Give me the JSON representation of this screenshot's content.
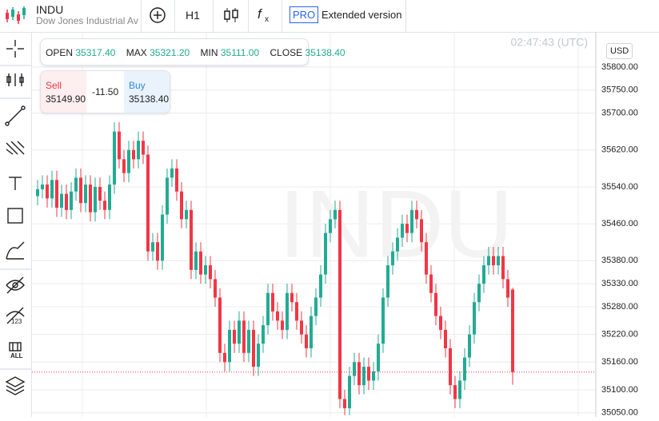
{
  "header": {
    "symbol": "INDU",
    "name": "Dow Jones Industrial Ave",
    "timeframe": "H1",
    "pro": "PRO",
    "extended": "Extended version"
  },
  "ohlc_panel": {
    "open_label": "OPEN",
    "open": "35317.40",
    "max_label": "MAX",
    "max": "35321.20",
    "min_label": "MIN",
    "min": "35111.00",
    "close_label": "CLOSE",
    "close": "35138.40"
  },
  "trade_panel": {
    "sell_label": "Sell",
    "sell": "35149.90",
    "spread": "-11.50",
    "buy_label": "Buy",
    "buy": "35138.40"
  },
  "time": "02:47:43 (UTC)",
  "currency": "USD",
  "toolbar_labels": [
    "123",
    "ALL"
  ],
  "chart_data": {
    "type": "candlestick",
    "watermark": "INDU",
    "up_color": "#22ab94",
    "down_color": "#f23645",
    "grid": true,
    "ylim": [
      35041,
      35876
    ],
    "yticks": [
      {
        "value": 35800,
        "label": "35800.00"
      },
      {
        "value": 35750,
        "label": "35750.00"
      },
      {
        "value": 35700,
        "label": "35700.00"
      },
      {
        "value": 35620,
        "label": "35620.00"
      },
      {
        "value": 35540,
        "label": "35540.00"
      },
      {
        "value": 35460,
        "label": "35460.00"
      },
      {
        "value": 35380,
        "label": "35380.00"
      },
      {
        "value": 35330,
        "label": "35330.00"
      },
      {
        "value": 35280,
        "label": "35280.00"
      },
      {
        "value": 35220,
        "label": "35220.00"
      },
      {
        "value": 35160,
        "label": "35160.00"
      },
      {
        "value": 35100,
        "label": "35100.00"
      },
      {
        "value": 35050,
        "label": "35050.00"
      }
    ],
    "open": [
      35520,
      35535,
      35545,
      35515,
      35555,
      35495,
      35525,
      35490,
      35530,
      35560,
      35505,
      35545,
      35485,
      35540,
      35510,
      35490,
      35545,
      35660,
      35600,
      35570,
      35620,
      35600,
      35640,
      35610,
      35400,
      35420,
      35380,
      35480,
      35560,
      35580,
      35530,
      35470,
      35490,
      35360,
      35400,
      35350,
      35370,
      35340,
      35300,
      35180,
      35160,
      35230,
      35200,
      35250,
      35180,
      35230,
      35150,
      35200,
      35240,
      35310,
      35270,
      35250,
      35230,
      35310,
      35290,
      35250,
      35220,
      35190,
      35260,
      35300,
      35350,
      35440,
      35470,
      35490,
      35080,
      35060,
      35130,
      35160,
      35110,
      35150,
      35120,
      35140,
      35200,
      35300,
      35370,
      35400,
      35430,
      35460,
      35440,
      35490,
      35470,
      35420,
      35350,
      35310,
      35260,
      35230,
      35190,
      35110,
      35080,
      35120,
      35170,
      35220,
      35290,
      35330,
      35370,
      35390,
      35370,
      35390,
      35340,
      35317.4
    ],
    "high": [
      35555,
      35565,
      35565,
      35575,
      35575,
      35545,
      35545,
      35550,
      35580,
      35580,
      35565,
      35565,
      35560,
      35560,
      35530,
      35565,
      35680,
      35680,
      35620,
      35640,
      35640,
      35660,
      35660,
      35630,
      35440,
      35440,
      35500,
      35580,
      35600,
      35600,
      35550,
      35510,
      35510,
      35420,
      35420,
      35390,
      35390,
      35360,
      35320,
      35200,
      35250,
      35250,
      35270,
      35270,
      35250,
      35250,
      35220,
      35260,
      35330,
      35330,
      35290,
      35270,
      35330,
      35330,
      35310,
      35270,
      35240,
      35280,
      35320,
      35370,
      35460,
      35490,
      35510,
      35510,
      35100,
      35150,
      35180,
      35180,
      35170,
      35170,
      35160,
      35220,
      35320,
      35390,
      35420,
      35450,
      35480,
      35480,
      35510,
      35510,
      35490,
      35440,
      35370,
      35330,
      35280,
      35250,
      35210,
      35130,
      35140,
      35190,
      35240,
      35310,
      35350,
      35390,
      35410,
      35410,
      35410,
      35410,
      35360,
      35321.2
    ],
    "low": [
      35500,
      35515,
      35495,
      35495,
      35475,
      35475,
      35470,
      35470,
      35510,
      35485,
      35485,
      35465,
      35465,
      35490,
      35470,
      35470,
      35525,
      35580,
      35550,
      35550,
      35580,
      35580,
      35590,
      35380,
      35380,
      35360,
      35360,
      35460,
      35540,
      35510,
      35450,
      35450,
      35340,
      35340,
      35330,
      35330,
      35320,
      35280,
      35160,
      35140,
      35140,
      35180,
      35180,
      35160,
      35160,
      35130,
      35130,
      35180,
      35220,
      35250,
      35230,
      35210,
      35210,
      35270,
      35230,
      35200,
      35170,
      35170,
      35240,
      35280,
      35330,
      35420,
      35450,
      35060,
      35045,
      35045,
      35110,
      35090,
      35090,
      35100,
      35100,
      35120,
      35180,
      35280,
      35350,
      35380,
      35410,
      35420,
      35420,
      35450,
      35400,
      35330,
      35290,
      35240,
      35210,
      35170,
      35090,
      35060,
      35060,
      35100,
      35150,
      35200,
      35270,
      35310,
      35350,
      35350,
      35350,
      35320,
      35280,
      35111
    ],
    "close": [
      35535,
      35545,
      35515,
      35555,
      35495,
      35525,
      35490,
      35530,
      35560,
      35505,
      35545,
      35485,
      35540,
      35510,
      35490,
      35545,
      35660,
      35600,
      35570,
      35620,
      35600,
      35640,
      35610,
      35400,
      35420,
      35380,
      35480,
      35560,
      35580,
      35530,
      35470,
      35490,
      35360,
      35400,
      35350,
      35370,
      35340,
      35300,
      35180,
      35160,
      35230,
      35200,
      35250,
      35180,
      35230,
      35150,
      35200,
      35240,
      35310,
      35270,
      35250,
      35230,
      35310,
      35290,
      35250,
      35220,
      35190,
      35260,
      35300,
      35350,
      35440,
      35470,
      35490,
      35080,
      35060,
      35130,
      35160,
      35110,
      35150,
      35120,
      35140,
      35200,
      35300,
      35370,
      35400,
      35430,
      35460,
      35440,
      35490,
      35470,
      35420,
      35350,
      35310,
      35260,
      35230,
      35190,
      35110,
      35080,
      35120,
      35170,
      35220,
      35290,
      35330,
      35370,
      35390,
      35370,
      35390,
      35340,
      35300,
      35138.4
    ]
  }
}
